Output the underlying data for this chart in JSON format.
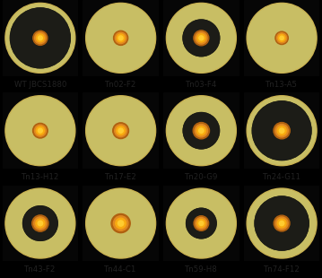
{
  "grid_rows": 3,
  "grid_cols": 4,
  "bg_color": "#000000",
  "label_fontsize": 6.2,
  "labels": [
    "WT JBCS1880",
    "Tn02-F2",
    "Tn03-F4",
    "Tn13-A5",
    "Tn13-H12",
    "Tn17-E2",
    "Tn20-G9",
    "Tn24-G11",
    "Tn43-F2",
    "Tn44-C1",
    "Tn59-H8",
    "Tn74-F12"
  ],
  "dark_ring_r": [
    0.3,
    0.0,
    0.14,
    0.0,
    0.0,
    0.0,
    0.13,
    0.28,
    0.12,
    0.0,
    0.1,
    0.25
  ],
  "colony_r": [
    0.095,
    0.095,
    0.1,
    0.085,
    0.098,
    0.105,
    0.108,
    0.108,
    0.108,
    0.125,
    0.098,
    0.105
  ],
  "dish_cream": "#e2d98a",
  "dish_cream2": "#ede8b0",
  "dish_edge_dark": "#c8b050",
  "dark_zone_color": "#252515",
  "colony_dark": "#b06010",
  "colony_mid": "#e08820",
  "colony_bright": "#f8aa10",
  "label_strip": "#e8e4d0",
  "label_color": "#222222"
}
